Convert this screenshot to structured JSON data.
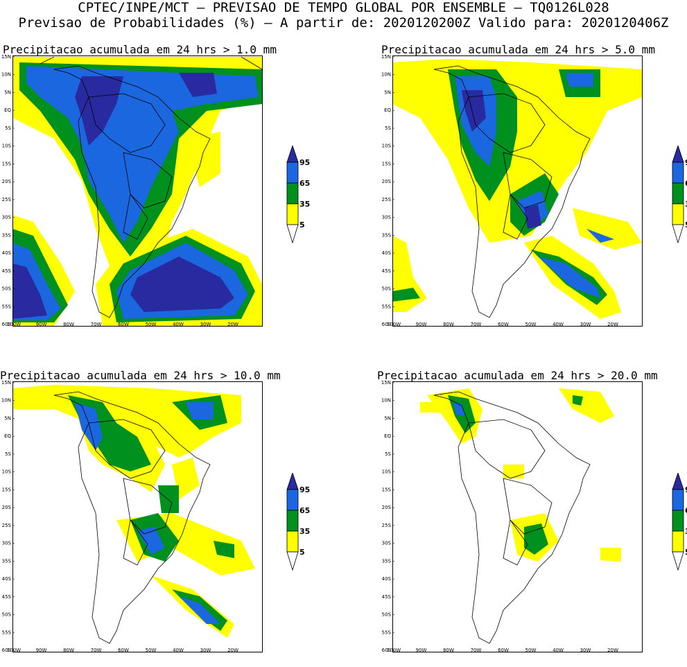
{
  "header": {
    "line1": "CPTEC/INPE/MCT — PREVISAO DE TEMPO GLOBAL POR ENSEMBLE — TQ0126L028",
    "line2": "Previsao de Probabilidades (%) —  A partir de: 2020120200Z  Valido para: 2020120406Z"
  },
  "colors": {
    "c5": "#ffff00",
    "c35": "#00901e",
    "c65": "#1a67e0",
    "c95": "#2a2aa0",
    "background": "#ffffff",
    "coast": "#000000"
  },
  "axes": {
    "lat_labels": [
      "15N",
      "10N",
      "5N",
      "EQ",
      "5S",
      "10S",
      "15S",
      "20S",
      "25S",
      "30S",
      "35S",
      "40S",
      "45S",
      "50S",
      "55S",
      "60S"
    ],
    "lon_labels": [
      "100W",
      "90W",
      "80W",
      "70W",
      "60W",
      "50W",
      "40W",
      "30W",
      "20W"
    ]
  },
  "legend": {
    "labels": [
      "95",
      "65",
      "35",
      "5"
    ]
  },
  "panels": [
    {
      "title": "Precipitacao acumulada em 24 hrs > 1.0 mm"
    },
    {
      "title": "Precipitacao acumulada em 24 hrs > 5.0 mm"
    },
    {
      "title": "Precipitacao acumulada em 24 hrs > 10.0 mm"
    },
    {
      "title": "Precipitacao acumulada em 24 hrs > 20.0 mm"
    }
  ]
}
